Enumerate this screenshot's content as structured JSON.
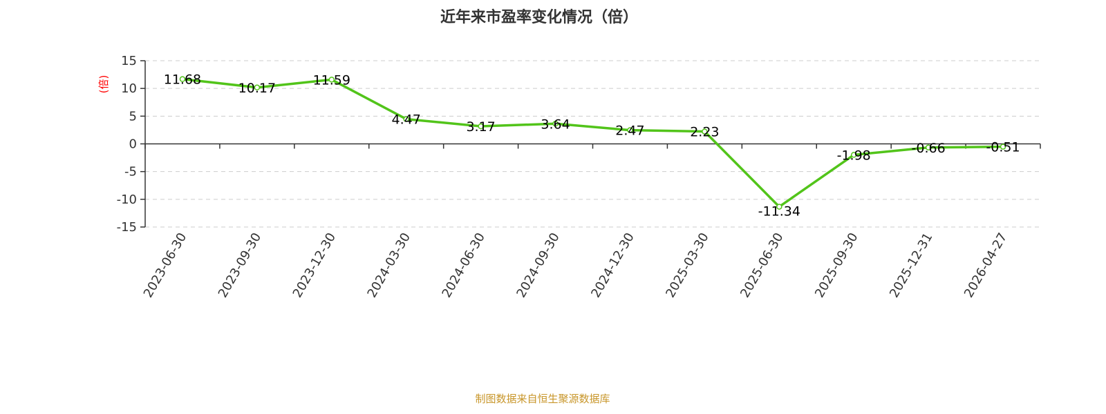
{
  "chart_data": {
    "type": "line",
    "title": "近年来市盈率变化情况（倍）",
    "ylabel": "(倍)",
    "xlabel": "",
    "categories": [
      "2023-06-30",
      "2023-09-30",
      "2023-12-30",
      "2024-03-30",
      "2024-06-30",
      "2024-09-30",
      "2024-12-30",
      "2025-03-30",
      "2025-06-30",
      "2025-09-30",
      "2025-12-31",
      "2026-04-27"
    ],
    "values": [
      11.68,
      10.17,
      11.59,
      4.47,
      3.17,
      3.64,
      2.47,
      2.23,
      -11.34,
      -1.98,
      -0.66,
      -0.51
    ],
    "data_labels": [
      "11.68",
      "10.17",
      "11.59",
      "4.47",
      "3.17",
      "3.64",
      "2.47",
      "2.23",
      "-11.34",
      "-1.98",
      "-0.66",
      "-0.51"
    ],
    "ylim": [
      -15,
      15
    ],
    "yticks": [
      "-15",
      "-10",
      "-5",
      "0",
      "5",
      "10",
      "15"
    ],
    "grid": true,
    "line_color": "#52c41a",
    "ylabel_color": "#ff0000"
  },
  "footer": {
    "source": "制图数据来自恒生聚源数据库",
    "color": "#c8962a"
  }
}
